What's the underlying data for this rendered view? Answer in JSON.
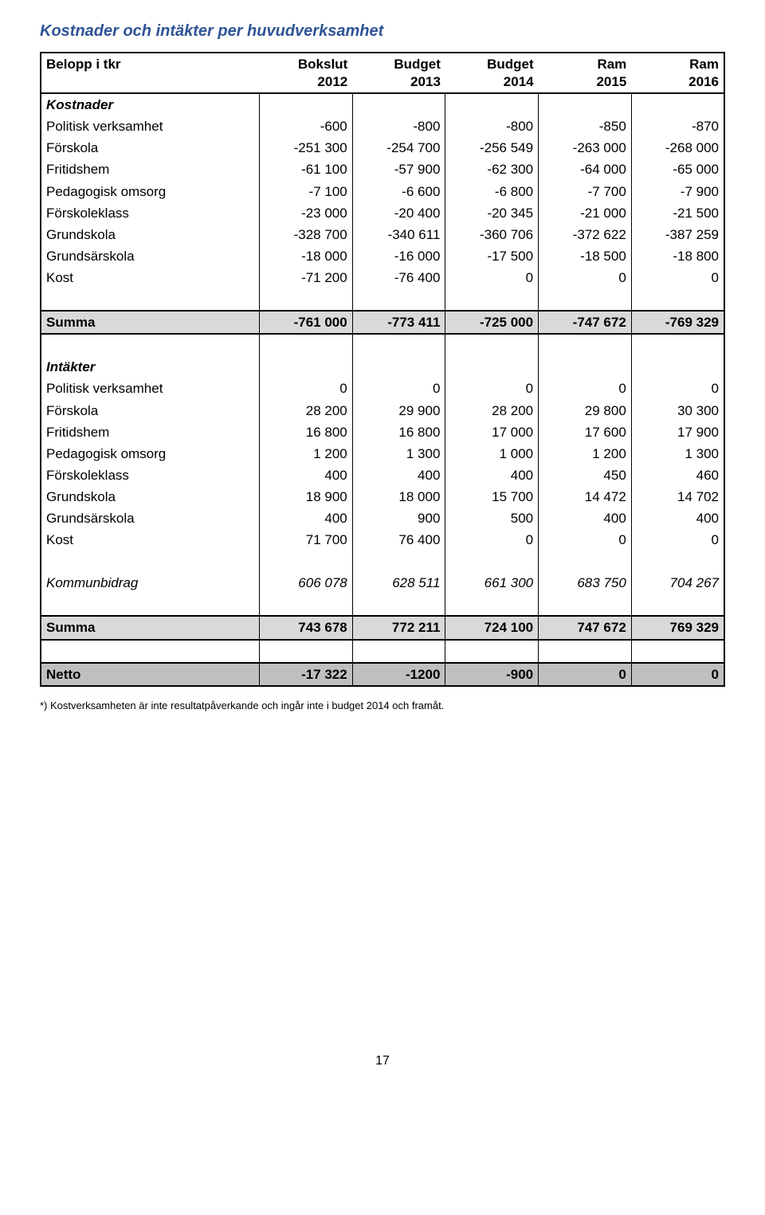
{
  "title": "Kostnader och intäkter per huvudverksamhet",
  "header": {
    "c0a": "Belopp i tkr",
    "c0b": "",
    "c1a": "Bokslut",
    "c1b": "2012",
    "c2a": "Budget",
    "c2b": "2013",
    "c3a": "Budget",
    "c3b": "2014",
    "c4a": "Ram",
    "c4b": "2015",
    "c5a": "Ram",
    "c5b": "2016"
  },
  "sections": {
    "kostnader": {
      "heading": "Kostnader",
      "rows": [
        {
          "label": "Politisk verksamhet",
          "v": [
            "-600",
            "-800",
            "-800",
            "-850",
            "-870"
          ]
        },
        {
          "label": "Förskola",
          "v": [
            "-251 300",
            "-254 700",
            "-256 549",
            "-263 000",
            "-268 000"
          ]
        },
        {
          "label": "Fritidshem",
          "v": [
            "-61 100",
            "-57 900",
            "-62 300",
            "-64 000",
            "-65 000"
          ]
        },
        {
          "label": "Pedagogisk omsorg",
          "v": [
            "-7 100",
            "-6 600",
            "-6 800",
            "-7 700",
            "-7 900"
          ]
        },
        {
          "label": "Förskoleklass",
          "v": [
            "-23 000",
            "-20 400",
            "-20 345",
            "-21 000",
            "-21 500"
          ]
        },
        {
          "label": "Grundskola",
          "v": [
            "-328 700",
            "-340 611",
            "-360 706",
            "-372 622",
            "-387 259"
          ]
        },
        {
          "label": "Grundsärskola",
          "v": [
            "-18 000",
            "-16 000",
            "-17 500",
            "-18 500",
            "-18 800"
          ]
        },
        {
          "label": "Kost",
          "v": [
            "-71 200",
            "-76 400",
            "0",
            "0",
            "0"
          ]
        }
      ]
    },
    "summa1": {
      "label": "Summa",
      "v": [
        "-761 000",
        "-773 411",
        "-725 000",
        "-747 672",
        "-769 329"
      ]
    },
    "intakter": {
      "heading": "Intäkter",
      "rows": [
        {
          "label": "Politisk verksamhet",
          "v": [
            "0",
            "0",
            "0",
            "0",
            "0"
          ]
        },
        {
          "label": "Förskola",
          "v": [
            "28 200",
            "29 900",
            "28 200",
            "29 800",
            "30 300"
          ]
        },
        {
          "label": "Fritidshem",
          "v": [
            "16 800",
            "16 800",
            "17 000",
            "17 600",
            "17 900"
          ]
        },
        {
          "label": "Pedagogisk omsorg",
          "v": [
            "1 200",
            "1 300",
            "1 000",
            "1 200",
            "1 300"
          ]
        },
        {
          "label": "Förskoleklass",
          "v": [
            "400",
            "400",
            "400",
            "450",
            "460"
          ]
        },
        {
          "label": "Grundskola",
          "v": [
            "18 900",
            "18 000",
            "15 700",
            "14 472",
            "14 702"
          ]
        },
        {
          "label": "Grundsärskola",
          "v": [
            "400",
            "900",
            "500",
            "400",
            "400"
          ]
        },
        {
          "label": "Kost",
          "v": [
            "71 700",
            "76 400",
            "0",
            "0",
            "0"
          ]
        }
      ]
    },
    "kommunbidrag": {
      "label": "Kommunbidrag",
      "v": [
        "606 078",
        "628 511",
        "661 300",
        "683 750",
        "704 267"
      ]
    },
    "summa2": {
      "label": "Summa",
      "v": [
        "743 678",
        "772 211",
        "724 100",
        "747 672",
        "769 329"
      ]
    },
    "netto": {
      "label": "Netto",
      "v": [
        "-17 322",
        "-1200",
        "-900",
        "0",
        "0"
      ]
    }
  },
  "footnote": "*) Kostverksamheten är inte resultatpåverkande och ingår inte i budget 2014 och framåt.",
  "pagenum": "17"
}
